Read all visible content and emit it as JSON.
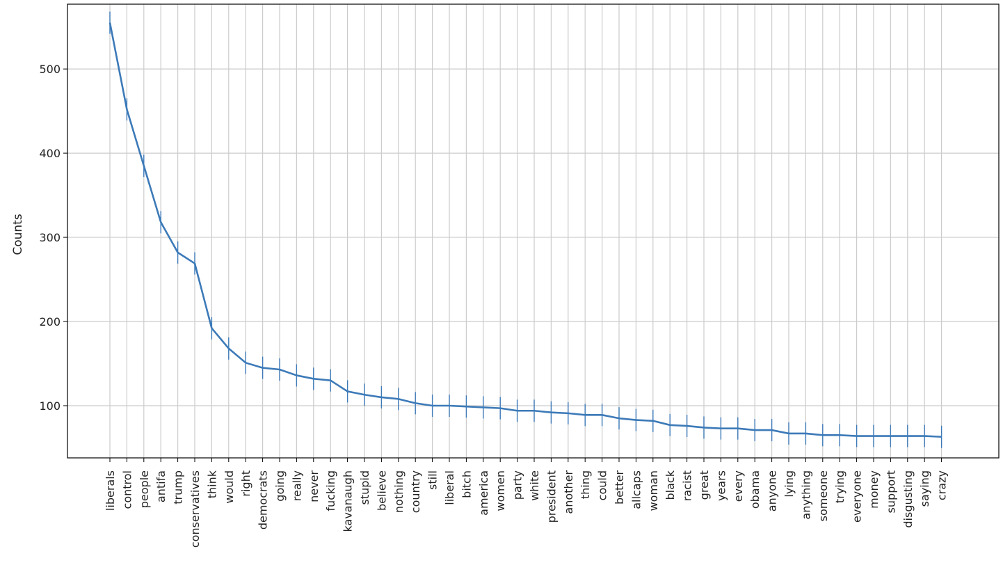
{
  "chart_data": {
    "type": "line",
    "title": "",
    "xlabel": "",
    "ylabel": "Counts",
    "ylim": [
      38,
      577
    ],
    "yticks": [
      100,
      200,
      300,
      400,
      500
    ],
    "grid": true,
    "series_color": "#3d7ab8",
    "categories": [
      "liberals",
      "control",
      "people",
      "antifa",
      "trump",
      "conservatives",
      "think",
      "would",
      "right",
      "democrats",
      "going",
      "really",
      "never",
      "fucking",
      "kavanaugh",
      "stupid",
      "believe",
      "nothing",
      "country",
      "still",
      "liberal",
      "bitch",
      "america",
      "women",
      "party",
      "white",
      "president",
      "another",
      "thing",
      "could",
      "better",
      "allcaps",
      "woman",
      "black",
      "racist",
      "great",
      "years",
      "every",
      "obama",
      "anyone",
      "lying",
      "anything",
      "someone",
      "trying",
      "everyone",
      "money",
      "support",
      "disgusting",
      "saying",
      "crazy"
    ],
    "values": [
      555,
      452,
      385,
      318,
      282,
      269,
      192,
      168,
      151,
      145,
      143,
      136,
      132,
      130,
      117,
      113,
      110,
      108,
      103,
      100,
      100,
      99,
      98,
      97,
      94,
      94,
      92,
      91,
      89,
      89,
      85,
      83,
      82,
      77,
      76,
      74,
      73,
      73,
      71,
      71,
      67,
      67,
      65,
      65,
      64,
      64,
      64,
      64,
      64,
      63
    ]
  }
}
